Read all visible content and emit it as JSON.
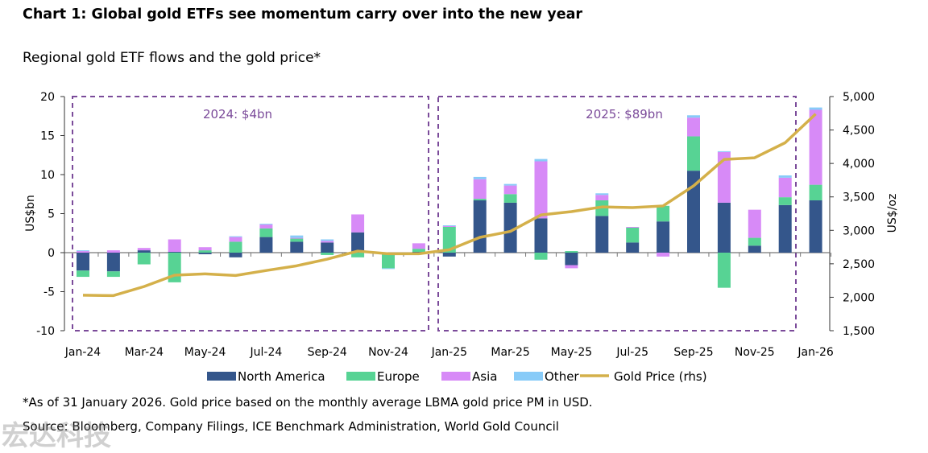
{
  "title": "Chart 1: Global gold ETFs see momentum carry over into the new year",
  "subtitle": "Regional gold ETF flows and the gold price*",
  "footnote": "*As of 31 January 2026. Gold price based on the monthly average LBMA gold price PM in USD.",
  "source": "Source: Bloomberg, Company Filings, ICE Benchmark Administration, World Gold Council",
  "watermark": "宏达科技",
  "colors": {
    "North America": "#34568b",
    "Europe": "#57d394",
    "Asia": "#d78af7",
    "Other": "#88cbf8",
    "Gold Price (rhs)": "#d4b04a",
    "box": "#7b4b9a"
  },
  "chart_data": {
    "type": "bar",
    "stacked": true,
    "x": [
      "Jan-24",
      "Feb-24",
      "Mar-24",
      "Apr-24",
      "May-24",
      "Jun-24",
      "Jul-24",
      "Aug-24",
      "Sep-24",
      "Oct-24",
      "Nov-24",
      "Dec-24",
      "Jan-25",
      "Feb-25",
      "Mar-25",
      "Apr-25",
      "May-25",
      "Jun-25",
      "Jul-25",
      "Aug-25",
      "Sep-25",
      "Oct-25",
      "Nov-25",
      "Dec-25",
      "Jan-26"
    ],
    "x_tick_labels": [
      "Jan-24",
      "Mar-24",
      "May-24",
      "Jul-24",
      "Sep-24",
      "Nov-24",
      "Jan-25",
      "Mar-25",
      "May-25",
      "Jul-25",
      "Sep-25",
      "Nov-25",
      "Jan-26"
    ],
    "series": [
      {
        "name": "North America",
        "values": [
          -2.3,
          -2.4,
          0.3,
          0.1,
          -0.2,
          -0.6,
          2.0,
          1.4,
          1.3,
          2.6,
          0.0,
          0.1,
          -0.5,
          6.7,
          6.4,
          4.4,
          -1.6,
          4.7,
          1.3,
          4.0,
          10.5,
          6.4,
          0.9,
          6.1,
          6.7
        ]
      },
      {
        "name": "Europe",
        "values": [
          -0.8,
          -0.7,
          -1.5,
          -3.8,
          0.3,
          1.4,
          1.1,
          0.4,
          -0.3,
          -0.6,
          -2.0,
          0.4,
          3.3,
          0.2,
          1.1,
          -0.9,
          0.2,
          2.0,
          1.9,
          2.0,
          4.4,
          -4.5,
          1.0,
          1.0,
          2.0
        ]
      },
      {
        "name": "Asia",
        "values": [
          0.2,
          0.3,
          0.3,
          1.6,
          0.4,
          0.6,
          0.5,
          0.1,
          0.2,
          2.3,
          0.0,
          0.7,
          0.1,
          2.5,
          1.1,
          7.3,
          -0.4,
          0.7,
          0.1,
          -0.5,
          2.4,
          6.5,
          3.6,
          2.5,
          9.6
        ]
      },
      {
        "name": "Other",
        "values": [
          0.1,
          0.0,
          0.0,
          0.0,
          0.0,
          0.1,
          0.1,
          0.3,
          0.2,
          0.0,
          -0.1,
          0.0,
          0.1,
          0.3,
          0.2,
          0.3,
          0.0,
          0.2,
          0.0,
          0.0,
          0.3,
          0.1,
          0.0,
          0.3,
          0.3
        ]
      }
    ],
    "line": {
      "name": "Gold Price (rhs)",
      "values": [
        2030,
        2025,
        2160,
        2330,
        2350,
        2325,
        2400,
        2470,
        2570,
        2690,
        2650,
        2650,
        2710,
        2895,
        2985,
        3230,
        3280,
        3350,
        3340,
        3365,
        3665,
        4060,
        4085,
        4310,
        4740
      ]
    },
    "ylabel": "US$bn",
    "y2label": "US$/oz",
    "ylim": [
      -10,
      20
    ],
    "yticks": [
      "-10",
      "-5",
      "0",
      "5",
      "10",
      "15",
      "20"
    ],
    "y2lim": [
      1500,
      5000
    ],
    "y2ticks": [
      "1,500",
      "2,000",
      "2,500",
      "3,000",
      "3,500",
      "4,000",
      "4,500",
      "5,000"
    ],
    "annotations": [
      "2024: $4bn",
      "2025: $89bn"
    ],
    "legend_position": "bottom",
    "grid": false
  }
}
